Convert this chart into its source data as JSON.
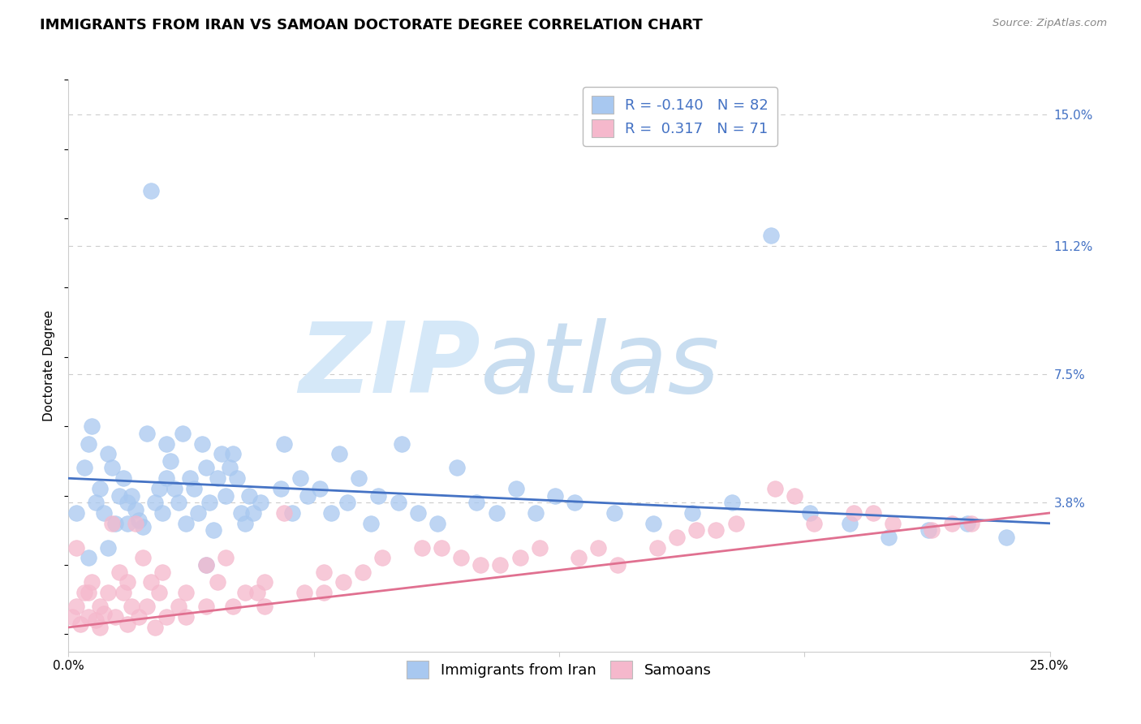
{
  "title": "IMMIGRANTS FROM IRAN VS SAMOAN DOCTORATE DEGREE CORRELATION CHART",
  "source": "Source: ZipAtlas.com",
  "ylabel": "Doctorate Degree",
  "ytick_labels": [
    "3.8%",
    "7.5%",
    "11.2%",
    "15.0%"
  ],
  "ytick_values": [
    3.8,
    7.5,
    11.2,
    15.0
  ],
  "xlim": [
    0.0,
    25.0
  ],
  "ylim": [
    -0.5,
    16.0
  ],
  "ymin_display": 0.0,
  "legend_r_blue": "-0.140",
  "legend_n_blue": "82",
  "legend_r_pink": " 0.317",
  "legend_n_pink": "71",
  "blue_color": "#a8c8f0",
  "pink_color": "#f5b8cc",
  "line_blue": "#4472c4",
  "line_pink": "#e07090",
  "watermark_zip": "ZIP",
  "watermark_atlas": "atlas",
  "watermark_color": "#d5e8f8",
  "blue_scatter": [
    [
      0.2,
      3.5
    ],
    [
      0.4,
      4.8
    ],
    [
      0.5,
      5.5
    ],
    [
      0.6,
      6.0
    ],
    [
      0.7,
      3.8
    ],
    [
      0.8,
      4.2
    ],
    [
      0.9,
      3.5
    ],
    [
      1.0,
      5.2
    ],
    [
      1.1,
      4.8
    ],
    [
      1.2,
      3.2
    ],
    [
      1.3,
      4.0
    ],
    [
      1.4,
      4.5
    ],
    [
      1.5,
      3.2
    ],
    [
      1.6,
      4.0
    ],
    [
      1.7,
      3.6
    ],
    [
      1.8,
      3.3
    ],
    [
      1.9,
      3.1
    ],
    [
      2.0,
      5.8
    ],
    [
      2.1,
      12.8
    ],
    [
      2.2,
      3.8
    ],
    [
      2.3,
      4.2
    ],
    [
      2.4,
      3.5
    ],
    [
      2.5,
      5.5
    ],
    [
      2.6,
      5.0
    ],
    [
      2.7,
      4.2
    ],
    [
      2.8,
      3.8
    ],
    [
      2.9,
      5.8
    ],
    [
      3.0,
      3.2
    ],
    [
      3.1,
      4.5
    ],
    [
      3.2,
      4.2
    ],
    [
      3.3,
      3.5
    ],
    [
      3.4,
      5.5
    ],
    [
      3.5,
      4.8
    ],
    [
      3.6,
      3.8
    ],
    [
      3.7,
      3.0
    ],
    [
      3.8,
      4.5
    ],
    [
      3.9,
      5.2
    ],
    [
      4.0,
      4.0
    ],
    [
      4.1,
      4.8
    ],
    [
      4.2,
      5.2
    ],
    [
      4.3,
      4.5
    ],
    [
      4.4,
      3.5
    ],
    [
      4.5,
      3.2
    ],
    [
      4.6,
      4.0
    ],
    [
      4.7,
      3.5
    ],
    [
      4.9,
      3.8
    ],
    [
      5.4,
      4.2
    ],
    [
      5.5,
      5.5
    ],
    [
      5.7,
      3.5
    ],
    [
      5.9,
      4.5
    ],
    [
      6.1,
      4.0
    ],
    [
      6.4,
      4.2
    ],
    [
      6.7,
      3.5
    ],
    [
      6.9,
      5.2
    ],
    [
      7.1,
      3.8
    ],
    [
      7.4,
      4.5
    ],
    [
      7.7,
      3.2
    ],
    [
      7.9,
      4.0
    ],
    [
      8.4,
      3.8
    ],
    [
      8.9,
      3.5
    ],
    [
      9.4,
      3.2
    ],
    [
      9.9,
      4.8
    ],
    [
      10.4,
      3.8
    ],
    [
      10.9,
      3.5
    ],
    [
      11.4,
      4.2
    ],
    [
      11.9,
      3.5
    ],
    [
      12.4,
      4.0
    ],
    [
      12.9,
      3.8
    ],
    [
      13.9,
      3.5
    ],
    [
      14.9,
      3.2
    ],
    [
      15.9,
      3.5
    ],
    [
      16.9,
      3.8
    ],
    [
      17.9,
      11.5
    ],
    [
      18.9,
      3.5
    ],
    [
      19.9,
      3.2
    ],
    [
      20.9,
      2.8
    ],
    [
      21.9,
      3.0
    ],
    [
      22.9,
      3.2
    ],
    [
      23.9,
      2.8
    ],
    [
      1.5,
      3.8
    ],
    [
      2.5,
      4.5
    ],
    [
      8.5,
      5.5
    ],
    [
      0.5,
      2.2
    ],
    [
      1.0,
      2.5
    ],
    [
      3.5,
      2.0
    ]
  ],
  "pink_scatter": [
    [
      0.1,
      0.5
    ],
    [
      0.2,
      0.8
    ],
    [
      0.3,
      0.3
    ],
    [
      0.4,
      1.2
    ],
    [
      0.5,
      0.5
    ],
    [
      0.6,
      1.5
    ],
    [
      0.7,
      0.4
    ],
    [
      0.8,
      0.8
    ],
    [
      0.9,
      0.6
    ],
    [
      1.0,
      1.2
    ],
    [
      1.1,
      3.2
    ],
    [
      1.2,
      0.5
    ],
    [
      1.3,
      1.8
    ],
    [
      1.4,
      1.2
    ],
    [
      1.5,
      0.3
    ],
    [
      1.6,
      0.8
    ],
    [
      1.7,
      3.2
    ],
    [
      1.8,
      0.5
    ],
    [
      1.9,
      2.2
    ],
    [
      2.0,
      0.8
    ],
    [
      2.1,
      1.5
    ],
    [
      2.2,
      0.2
    ],
    [
      2.3,
      1.2
    ],
    [
      2.4,
      1.8
    ],
    [
      2.5,
      0.5
    ],
    [
      3.0,
      1.2
    ],
    [
      3.5,
      0.8
    ],
    [
      3.8,
      1.5
    ],
    [
      4.0,
      2.2
    ],
    [
      4.2,
      0.8
    ],
    [
      4.5,
      1.2
    ],
    [
      5.0,
      1.5
    ],
    [
      5.5,
      3.5
    ],
    [
      6.0,
      1.2
    ],
    [
      6.5,
      1.8
    ],
    [
      7.0,
      1.5
    ],
    [
      8.0,
      2.2
    ],
    [
      9.0,
      2.5
    ],
    [
      10.0,
      2.2
    ],
    [
      11.0,
      2.0
    ],
    [
      12.0,
      2.5
    ],
    [
      13.0,
      2.2
    ],
    [
      14.0,
      2.0
    ],
    [
      15.0,
      2.5
    ],
    [
      16.0,
      3.0
    ],
    [
      17.0,
      3.2
    ],
    [
      18.0,
      4.2
    ],
    [
      19.0,
      3.2
    ],
    [
      20.0,
      3.5
    ],
    [
      21.0,
      3.2
    ],
    [
      22.0,
      3.0
    ],
    [
      23.0,
      3.2
    ],
    [
      0.2,
      2.5
    ],
    [
      0.5,
      1.2
    ],
    [
      3.5,
      2.0
    ],
    [
      5.0,
      0.8
    ],
    [
      6.5,
      1.2
    ],
    [
      7.5,
      1.8
    ],
    [
      9.5,
      2.5
    ],
    [
      10.5,
      2.0
    ],
    [
      11.5,
      2.2
    ],
    [
      13.5,
      2.5
    ],
    [
      15.5,
      2.8
    ],
    [
      16.5,
      3.0
    ],
    [
      18.5,
      4.0
    ],
    [
      20.5,
      3.5
    ],
    [
      22.5,
      3.2
    ],
    [
      0.8,
      0.2
    ],
    [
      1.5,
      1.5
    ],
    [
      3.0,
      0.5
    ],
    [
      4.8,
      1.2
    ],
    [
      2.8,
      0.8
    ]
  ],
  "blue_line_x": [
    0.0,
    25.0
  ],
  "blue_line_y": [
    4.5,
    3.2
  ],
  "pink_line_x": [
    0.0,
    25.0
  ],
  "pink_line_y": [
    0.2,
    3.5
  ],
  "xtick_positions": [
    0.0,
    6.25,
    12.5,
    18.75,
    25.0
  ],
  "grid_color": "#cccccc",
  "title_fontsize": 13,
  "axis_label_fontsize": 11,
  "tick_fontsize": 11,
  "legend_fontsize": 13
}
